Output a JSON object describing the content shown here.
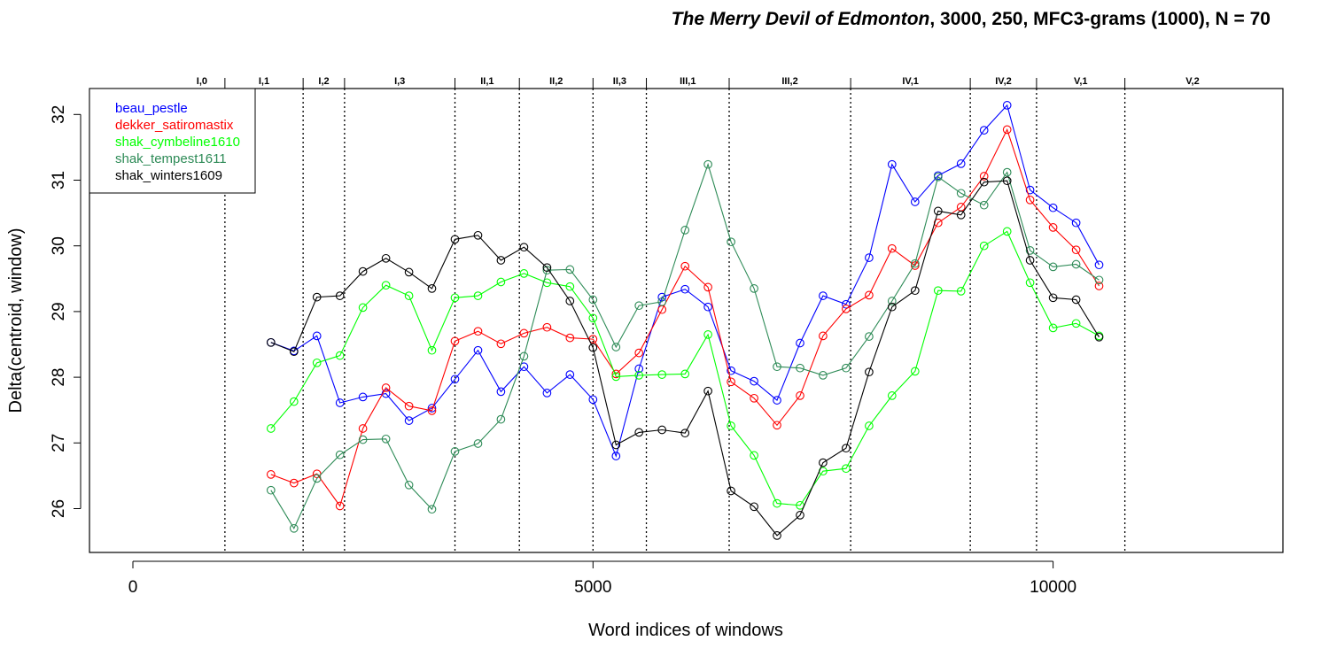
{
  "chart_data": {
    "type": "line",
    "title": {
      "italic": "The Merry Devil of Edmonton",
      "rest": ", 3000, 250, MFC3-grams (1000), N = 70"
    },
    "xlabel": "Word indices of windows",
    "ylabel": "Delta(centroid, window)",
    "xlim": [
      -500,
      12500
    ],
    "ylim": [
      25.3,
      32.4
    ],
    "x_ticks": [
      0,
      5000,
      10000
    ],
    "x_tick_labels": [
      "0",
      "5000",
      "10000"
    ],
    "y_ticks": [
      26,
      27,
      28,
      29,
      30,
      31,
      32
    ],
    "y_tick_labels": [
      "26",
      "27",
      "28",
      "29",
      "30",
      "31",
      "32"
    ],
    "grid": false,
    "legend_position": "top-left",
    "scene_boundaries": [
      1000,
      1850,
      2300,
      3500,
      4200,
      5000,
      5580,
      6480,
      7800,
      9100,
      9820,
      10780
    ],
    "scenes": [
      {
        "label": "I,0",
        "from": 500,
        "to": 1000
      },
      {
        "label": "I,1",
        "from": 1000,
        "to": 1850
      },
      {
        "label": "I,2",
        "from": 1850,
        "to": 2300
      },
      {
        "label": "I,3",
        "from": 2300,
        "to": 3500
      },
      {
        "label": "II,1",
        "from": 3500,
        "to": 4200
      },
      {
        "label": "II,2",
        "from": 4200,
        "to": 5000
      },
      {
        "label": "II,3",
        "from": 5000,
        "to": 5580
      },
      {
        "label": "III,1",
        "from": 5580,
        "to": 6480
      },
      {
        "label": "III,2",
        "from": 6480,
        "to": 7800
      },
      {
        "label": "IV,1",
        "from": 7800,
        "to": 9100
      },
      {
        "label": "IV,2",
        "from": 9100,
        "to": 9820
      },
      {
        "label": "V,1",
        "from": 9820,
        "to": 10780
      },
      {
        "label": "V,2",
        "from": 10780,
        "to": 12250
      }
    ],
    "x": [
      1500,
      1750,
      2000,
      2250,
      2500,
      2750,
      3000,
      3250,
      3500,
      3750,
      4000,
      4250,
      4500,
      4750,
      5000,
      5250,
      5500,
      5750,
      6000,
      6250,
      6500,
      6750,
      7000,
      7250,
      7500,
      7750,
      8000,
      8250,
      8500,
      8750,
      9000,
      9250,
      9500,
      9750,
      10000,
      10250,
      10500
    ],
    "series": [
      {
        "name": "beau_pestle",
        "color": "#0000ff",
        "values": [
          28.53,
          28.4,
          28.63,
          27.61,
          27.7,
          27.75,
          27.34,
          27.53,
          27.97,
          28.41,
          27.78,
          28.16,
          27.76,
          28.04,
          27.66,
          26.8,
          28.13,
          29.22,
          29.34,
          29.07,
          28.1,
          27.94,
          27.65,
          28.52,
          29.24,
          29.11,
          29.82,
          31.24,
          30.67,
          31.07,
          31.25,
          31.76,
          32.14,
          30.85,
          30.58,
          30.35,
          29.71
        ]
      },
      {
        "name": "dekker_satiromastix",
        "color": "#ff0000",
        "values": [
          26.52,
          26.39,
          26.53,
          26.04,
          27.22,
          27.84,
          27.56,
          27.49,
          28.55,
          28.7,
          28.51,
          28.67,
          28.76,
          28.6,
          28.58,
          28.05,
          28.37,
          29.03,
          29.69,
          29.37,
          27.93,
          27.68,
          27.27,
          27.72,
          28.63,
          29.04,
          29.25,
          29.96,
          29.7,
          30.35,
          30.59,
          31.06,
          31.77,
          30.7,
          30.28,
          29.94,
          29.39
        ]
      },
      {
        "name": "shak_cymbeline1610",
        "color": "#00ff00",
        "values": [
          27.22,
          27.63,
          28.22,
          28.33,
          29.06,
          29.4,
          29.24,
          28.41,
          29.21,
          29.24,
          29.45,
          29.58,
          29.44,
          29.38,
          28.9,
          28.01,
          28.03,
          28.04,
          28.05,
          28.65,
          27.26,
          26.81,
          26.08,
          26.05,
          26.57,
          26.61,
          27.26,
          27.72,
          28.09,
          29.32,
          29.31,
          30.0,
          30.22,
          29.44,
          28.75,
          28.82,
          28.63
        ]
      },
      {
        "name": "shak_tempest1611",
        "color": "#2e8b57",
        "values": [
          26.28,
          25.7,
          26.46,
          26.82,
          27.05,
          27.06,
          26.36,
          25.99,
          26.87,
          26.99,
          27.36,
          28.32,
          29.63,
          29.64,
          29.18,
          28.46,
          29.09,
          29.15,
          30.24,
          31.24,
          30.06,
          29.35,
          28.16,
          28.14,
          28.03,
          28.14,
          28.62,
          29.16,
          29.73,
          31.05,
          30.8,
          30.62,
          31.12,
          29.93,
          29.68,
          29.72,
          29.48
        ]
      },
      {
        "name": "shak_winters1609",
        "color": "#000000",
        "values": [
          28.53,
          28.39,
          29.22,
          29.24,
          29.61,
          29.81,
          29.6,
          29.35,
          30.1,
          30.16,
          29.78,
          29.98,
          29.67,
          29.16,
          28.45,
          26.97,
          27.16,
          27.2,
          27.15,
          27.79,
          26.27,
          26.03,
          25.59,
          25.9,
          26.7,
          26.92,
          28.08,
          29.07,
          29.32,
          30.53,
          30.47,
          30.97,
          30.99,
          29.78,
          29.21,
          29.18,
          28.61
        ]
      }
    ]
  }
}
